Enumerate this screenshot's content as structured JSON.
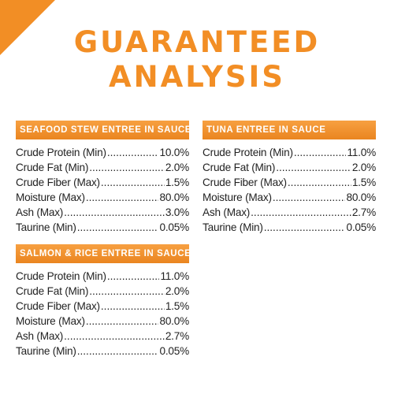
{
  "title": {
    "line1": "GUARANTEED",
    "line2": "ANALYSIS"
  },
  "panels": [
    {
      "heading": "SEAFOOD STEW ENTREE IN SAUCE",
      "rows": [
        {
          "label": "Crude Protein (Min)",
          "value": "10.0%"
        },
        {
          "label": "Crude Fat (Min)",
          "value": "2.0%"
        },
        {
          "label": "Crude Fiber (Max)",
          "value": "1.5%"
        },
        {
          "label": "Moisture (Max)",
          "value": "80.0%"
        },
        {
          "label": "Ash (Max)",
          "value": "3.0%"
        },
        {
          "label": "Taurine (Min)",
          "value": "0.05%"
        }
      ]
    },
    {
      "heading": "TUNA ENTREE IN SAUCE",
      "rows": [
        {
          "label": "Crude Protein (Min)",
          "value": "11.0%"
        },
        {
          "label": "Crude Fat (Min)",
          "value": "2.0%"
        },
        {
          "label": "Crude Fiber (Max)",
          "value": "1.5%"
        },
        {
          "label": "Moisture (Max)",
          "value": "80.0%"
        },
        {
          "label": "Ash (Max)",
          "value": "2.7%"
        },
        {
          "label": "Taurine (Min)",
          "value": "0.05%"
        }
      ]
    },
    {
      "heading": "SALMON & RICE ENTREE IN SAUCE",
      "rows": [
        {
          "label": "Crude Protein (Min)",
          "value": "11.0%"
        },
        {
          "label": "Crude Fat (Min)",
          "value": "2.0%"
        },
        {
          "label": "Crude Fiber (Max)",
          "value": "1.5%"
        },
        {
          "label": "Moisture (Max)",
          "value": "80.0%"
        },
        {
          "label": "Ash (Max)",
          "value": "2.7%"
        },
        {
          "label": "Taurine (Min)",
          "value": "0.05%"
        }
      ]
    }
  ]
}
